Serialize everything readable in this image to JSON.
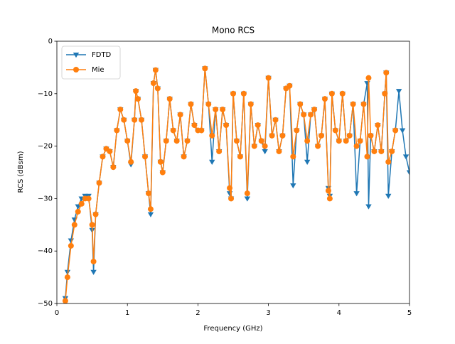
{
  "chart_data": {
    "type": "line",
    "title": "Mono RCS",
    "x_label": "Frequency (GHz)",
    "y_label": "RCS (dBsm)",
    "x": [
      0.12,
      0.15,
      0.2,
      0.25,
      0.3,
      0.35,
      0.4,
      0.45,
      0.5,
      0.52,
      0.55,
      0.6,
      0.65,
      0.7,
      0.75,
      0.8,
      0.85,
      0.9,
      0.95,
      1.0,
      1.05,
      1.1,
      1.12,
      1.15,
      1.2,
      1.25,
      1.3,
      1.33,
      1.37,
      1.4,
      1.43,
      1.47,
      1.5,
      1.55,
      1.6,
      1.65,
      1.7,
      1.75,
      1.8,
      1.85,
      1.9,
      1.95,
      2.0,
      2.05,
      2.1,
      2.15,
      2.2,
      2.25,
      2.3,
      2.35,
      2.4,
      2.45,
      2.47,
      2.5,
      2.55,
      2.6,
      2.65,
      2.7,
      2.75,
      2.8,
      2.85,
      2.9,
      2.95,
      3.0,
      3.05,
      3.1,
      3.15,
      3.2,
      3.25,
      3.3,
      3.35,
      3.4,
      3.45,
      3.5,
      3.55,
      3.6,
      3.65,
      3.7,
      3.75,
      3.8,
      3.85,
      3.87,
      3.9,
      3.95,
      4.0,
      4.05,
      4.1,
      4.15,
      4.2,
      4.25,
      4.3,
      4.35,
      4.4,
      4.42,
      4.45,
      4.5,
      4.55,
      4.6,
      4.65,
      4.67,
      4.7,
      4.75,
      4.8,
      4.85,
      4.9,
      4.95,
      5.0
    ],
    "series": [
      {
        "name": "FDTD",
        "color": "#1f77b4",
        "marker": "triangle-down",
        "values": [
          -49,
          -44,
          -38,
          -34,
          -31.5,
          -30,
          -29.5,
          -29.5,
          -36,
          -44,
          -33,
          -27,
          -22,
          -20.5,
          -21,
          -24,
          -17,
          -13,
          -15,
          -19,
          -23.5,
          -15,
          -9.5,
          -11,
          -15,
          -22,
          -29,
          -33,
          -8,
          -5.5,
          -9,
          -23,
          -25,
          -19,
          -11,
          -17,
          -19,
          -14,
          -22,
          -19,
          -12,
          -16,
          -17,
          -17,
          -5.2,
          -12,
          -23,
          -13,
          -21,
          -13,
          -16,
          -29,
          -30,
          -10,
          -19,
          -22,
          -10,
          -30,
          -12,
          -20,
          -16,
          -19,
          -21,
          -7,
          -18,
          -15,
          -21,
          -18,
          -9,
          -8.5,
          -27.5,
          -17,
          -12,
          -14,
          -23,
          -14,
          -13,
          -20,
          -18,
          -11,
          -28,
          -29.5,
          -10,
          -17,
          -19,
          -10,
          -19,
          -18,
          -12,
          -29,
          -19,
          -12,
          -8,
          -31.5,
          -18,
          -21,
          -16,
          -21,
          -10,
          -6,
          -29.5,
          -21,
          -17,
          -9.5,
          -17,
          -22,
          -25
        ]
      },
      {
        "name": "Mie",
        "color": "#ff7f0e",
        "marker": "circle",
        "values": [
          -49.5,
          -45,
          -39,
          -35,
          -32.5,
          -31,
          -30,
          -30,
          -35,
          -42,
          -33,
          -27,
          -22,
          -20.5,
          -21,
          -24,
          -17,
          -13,
          -15,
          -19,
          -23,
          -15,
          -9.5,
          -11,
          -15,
          -22,
          -29,
          -32,
          -8,
          -5.5,
          -9,
          -23,
          -25,
          -19,
          -11,
          -17,
          -19,
          -14,
          -22,
          -19,
          -12,
          -16,
          -17,
          -17,
          -5.2,
          -12,
          -18,
          -13,
          -21,
          -13,
          -16,
          -28,
          -30,
          -10,
          -19,
          -22,
          -10,
          -29,
          -12,
          -20,
          -16,
          -19,
          -20,
          -7,
          -18,
          -15,
          -21,
          -18,
          -9,
          -8.5,
          -22,
          -17,
          -12,
          -14,
          -19,
          -14,
          -13,
          -20,
          -18,
          -11,
          -28.5,
          -30,
          -10,
          -17,
          -19,
          -10,
          -19,
          -18,
          -12,
          -20,
          -19,
          -12,
          -22,
          -7,
          -18,
          -21,
          -16,
          -21,
          -10,
          -6,
          -23,
          -21,
          -17,
          null,
          null,
          null,
          null
        ]
      }
    ],
    "xlim": [
      0,
      5
    ],
    "xticks": [
      0,
      1,
      2,
      3,
      4,
      5
    ],
    "ylim": [
      -50,
      0
    ],
    "yticks": [
      {
        "value": -50,
        "label": "−50"
      },
      {
        "value": -40,
        "label": "−40"
      },
      {
        "value": -30,
        "label": "−30"
      },
      {
        "value": -20,
        "label": "−20"
      },
      {
        "value": -10,
        "label": "−10"
      },
      0
    ],
    "legend": "upper left",
    "grid": false
  }
}
